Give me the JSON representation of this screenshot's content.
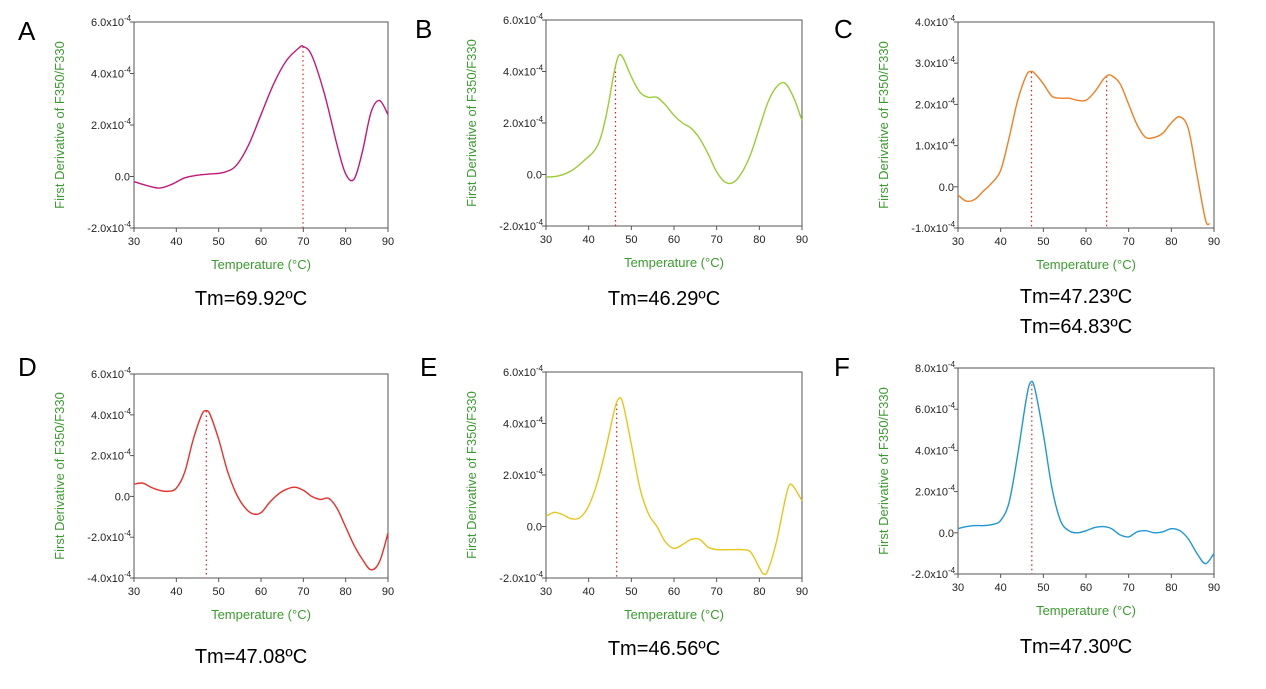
{
  "chart_data": [
    {
      "panel": "A",
      "type": "line",
      "color": "#c2187a",
      "xlabel": "Temperature (°C)",
      "ylabel": "First Derivative of F350/F330",
      "xlim": [
        30,
        90
      ],
      "ylim": [
        -2.0,
        6.0
      ],
      "y_exponent": "-4",
      "xticks": [
        30,
        40,
        50,
        60,
        70,
        80,
        90
      ],
      "yticks": [
        -2.0,
        0.0,
        2.0,
        4.0,
        6.0
      ],
      "ytick_labels": [
        "-2.0x10",
        "0.0",
        "2.0x10",
        "4.0x10",
        "6.0x10"
      ],
      "x": [
        30,
        33,
        36,
        39,
        42,
        45,
        48,
        51,
        54,
        57,
        60,
        63,
        66,
        69,
        70,
        72,
        75,
        78,
        80,
        82,
        84,
        86,
        88,
        90
      ],
      "y": [
        -0.2,
        -0.35,
        -0.45,
        -0.3,
        -0.05,
        0.05,
        0.1,
        0.15,
        0.4,
        1.2,
        2.4,
        3.6,
        4.5,
        5.0,
        5.05,
        4.7,
        3.2,
        1.2,
        0.1,
        -0.1,
        1.0,
        2.5,
        2.95,
        2.4
      ],
      "tm_lines": [
        69.92
      ],
      "annotation": "Tm=69.92ºC"
    },
    {
      "panel": "B",
      "type": "line",
      "color": "#9bcc34",
      "xlabel": "Temperature (°C)",
      "ylabel": "First Derivative of F350/F330",
      "xlim": [
        30,
        90
      ],
      "ylim": [
        -2.0,
        6.0
      ],
      "y_exponent": "-4",
      "xticks": [
        30,
        40,
        50,
        60,
        70,
        80,
        90
      ],
      "yticks": [
        -2.0,
        0.0,
        2.0,
        4.0,
        6.0
      ],
      "ytick_labels": [
        "-2.0x10",
        "0.0",
        "2.0x10",
        "4.0x10",
        "6.0x10"
      ],
      "x": [
        30,
        33,
        36,
        39,
        42,
        44,
        46,
        47,
        48,
        50,
        52,
        54,
        56,
        58,
        60,
        62,
        64,
        66,
        68,
        70,
        72,
        74,
        76,
        78,
        80,
        82,
        84,
        86,
        88,
        90
      ],
      "y": [
        -0.1,
        -0.05,
        0.15,
        0.55,
        1.1,
        2.2,
        4.0,
        4.6,
        4.55,
        3.8,
        3.2,
        3.0,
        3.0,
        2.7,
        2.3,
        2.0,
        1.8,
        1.4,
        0.8,
        0.1,
        -0.3,
        -0.3,
        0.1,
        0.8,
        1.8,
        2.8,
        3.4,
        3.55,
        3.0,
        2.1
      ],
      "tm_lines": [
        46.29
      ],
      "annotation": "Tm=46.29ºC"
    },
    {
      "panel": "C",
      "type": "line",
      "color": "#ef7f22",
      "xlabel": "Temperature (°C)",
      "ylabel": "First Derivative of F350/F330",
      "xlim": [
        30,
        90
      ],
      "ylim": [
        -1.0,
        4.0
      ],
      "y_exponent": "-4",
      "xticks": [
        30,
        40,
        50,
        60,
        70,
        80,
        90
      ],
      "yticks": [
        -1.0,
        0.0,
        1.0,
        2.0,
        3.0,
        4.0
      ],
      "ytick_labels": [
        "-1.0x10",
        "0.0",
        "1.0x10",
        "2.0x10",
        "3.0x10",
        "4.0x10"
      ],
      "x": [
        30,
        32,
        34,
        36,
        38,
        40,
        42,
        44,
        46,
        47,
        48,
        50,
        52,
        54,
        56,
        58,
        60,
        62,
        64,
        65,
        66,
        68,
        70,
        72,
        74,
        76,
        78,
        80,
        82,
        84,
        86,
        88,
        89
      ],
      "y": [
        -0.2,
        -0.35,
        -0.3,
        -0.1,
        0.1,
        0.4,
        1.2,
        2.1,
        2.7,
        2.8,
        2.75,
        2.5,
        2.2,
        2.15,
        2.15,
        2.1,
        2.1,
        2.3,
        2.6,
        2.7,
        2.7,
        2.5,
        2.0,
        1.5,
        1.2,
        1.2,
        1.3,
        1.55,
        1.7,
        1.4,
        0.3,
        -0.8,
        -0.9
      ],
      "tm_lines": [
        47.23,
        64.83
      ],
      "annotation": "Tm=47.23ºC",
      "annotation2": "Tm=64.83ºC"
    },
    {
      "panel": "D",
      "type": "line",
      "color": "#e8302a",
      "xlabel": "Temperature (°C)",
      "ylabel": "First Derivative of F350/F330",
      "xlim": [
        30,
        90
      ],
      "ylim": [
        -4.0,
        6.0
      ],
      "y_exponent": "-4",
      "xticks": [
        30,
        40,
        50,
        60,
        70,
        80,
        90
      ],
      "yticks": [
        -4.0,
        -2.0,
        0.0,
        2.0,
        4.0,
        6.0
      ],
      "ytick_labels": [
        "-4.0x10",
        "-2.0x10",
        "0.0",
        "2.0x10",
        "4.0x10",
        "6.0x10"
      ],
      "x": [
        30,
        32,
        34,
        36,
        38,
        40,
        42,
        44,
        46,
        47,
        48,
        50,
        52,
        54,
        56,
        58,
        60,
        62,
        64,
        66,
        68,
        70,
        72,
        74,
        76,
        78,
        80,
        82,
        84,
        86,
        88,
        90
      ],
      "y": [
        0.6,
        0.65,
        0.45,
        0.3,
        0.25,
        0.4,
        1.2,
        2.8,
        4.0,
        4.2,
        4.0,
        2.8,
        1.3,
        0.2,
        -0.5,
        -0.85,
        -0.8,
        -0.3,
        0.1,
        0.35,
        0.45,
        0.3,
        0.0,
        -0.15,
        -0.1,
        -0.6,
        -1.5,
        -2.4,
        -3.1,
        -3.6,
        -3.2,
        -1.8
      ],
      "tm_lines": [
        47.08
      ],
      "annotation": "Tm=47.08ºC"
    },
    {
      "panel": "E",
      "type": "line",
      "color": "#e5c61a",
      "xlabel": "Temperature (°C)",
      "ylabel": "First Derivative of F350/F330",
      "xlim": [
        30,
        90
      ],
      "ylim": [
        -2.0,
        6.0
      ],
      "y_exponent": "-4",
      "xticks": [
        30,
        40,
        50,
        60,
        70,
        80,
        90
      ],
      "yticks": [
        -2.0,
        0.0,
        2.0,
        4.0,
        6.0
      ],
      "ytick_labels": [
        "-2.0x10",
        "0.0",
        "2.0x10",
        "4.0x10",
        "6.0x10"
      ],
      "x": [
        30,
        32,
        34,
        36,
        38,
        40,
        42,
        44,
        46,
        47,
        48,
        50,
        52,
        54,
        56,
        58,
        60,
        62,
        64,
        66,
        68,
        70,
        72,
        74,
        76,
        78,
        80,
        81,
        82,
        84,
        86,
        87,
        88,
        90
      ],
      "y": [
        0.4,
        0.55,
        0.45,
        0.3,
        0.35,
        0.8,
        1.7,
        3.0,
        4.5,
        4.95,
        4.8,
        3.2,
        1.5,
        0.5,
        0.0,
        -0.6,
        -0.85,
        -0.7,
        -0.5,
        -0.5,
        -0.8,
        -0.9,
        -0.9,
        -0.9,
        -0.9,
        -1.0,
        -1.6,
        -1.85,
        -1.7,
        -0.6,
        1.0,
        1.6,
        1.55,
        1.0
      ],
      "tm_lines": [
        46.56
      ],
      "annotation": "Tm=46.56ºC"
    },
    {
      "panel": "F",
      "type": "line",
      "color": "#1e98d4",
      "xlabel": "Temperature (°C)",
      "ylabel": "First Derivative of F350/F330",
      "xlim": [
        30,
        90
      ],
      "ylim": [
        -2.0,
        8.0
      ],
      "y_exponent": "-4",
      "xticks": [
        30,
        40,
        50,
        60,
        70,
        80,
        90
      ],
      "yticks": [
        -2.0,
        0.0,
        2.0,
        4.0,
        6.0,
        8.0
      ],
      "ytick_labels": [
        "-2.0x10",
        "0.0",
        "2.0x10",
        "4.0x10",
        "6.0x10",
        "8.0x10"
      ],
      "x": [
        30,
        32,
        34,
        36,
        38,
        40,
        42,
        44,
        46,
        47,
        48,
        50,
        52,
        54,
        56,
        58,
        60,
        62,
        64,
        66,
        68,
        70,
        72,
        74,
        76,
        78,
        80,
        82,
        84,
        86,
        88,
        90
      ],
      "y": [
        0.2,
        0.3,
        0.35,
        0.35,
        0.4,
        0.6,
        1.5,
        3.8,
        6.5,
        7.3,
        7.0,
        4.8,
        2.2,
        0.6,
        0.1,
        0.0,
        0.1,
        0.25,
        0.3,
        0.2,
        -0.1,
        -0.2,
        0.05,
        0.1,
        0.0,
        0.05,
        0.2,
        0.1,
        -0.3,
        -1.0,
        -1.5,
        -1.0
      ],
      "tm_lines": [
        47.3
      ],
      "annotation": "Tm=47.30ºC"
    }
  ]
}
